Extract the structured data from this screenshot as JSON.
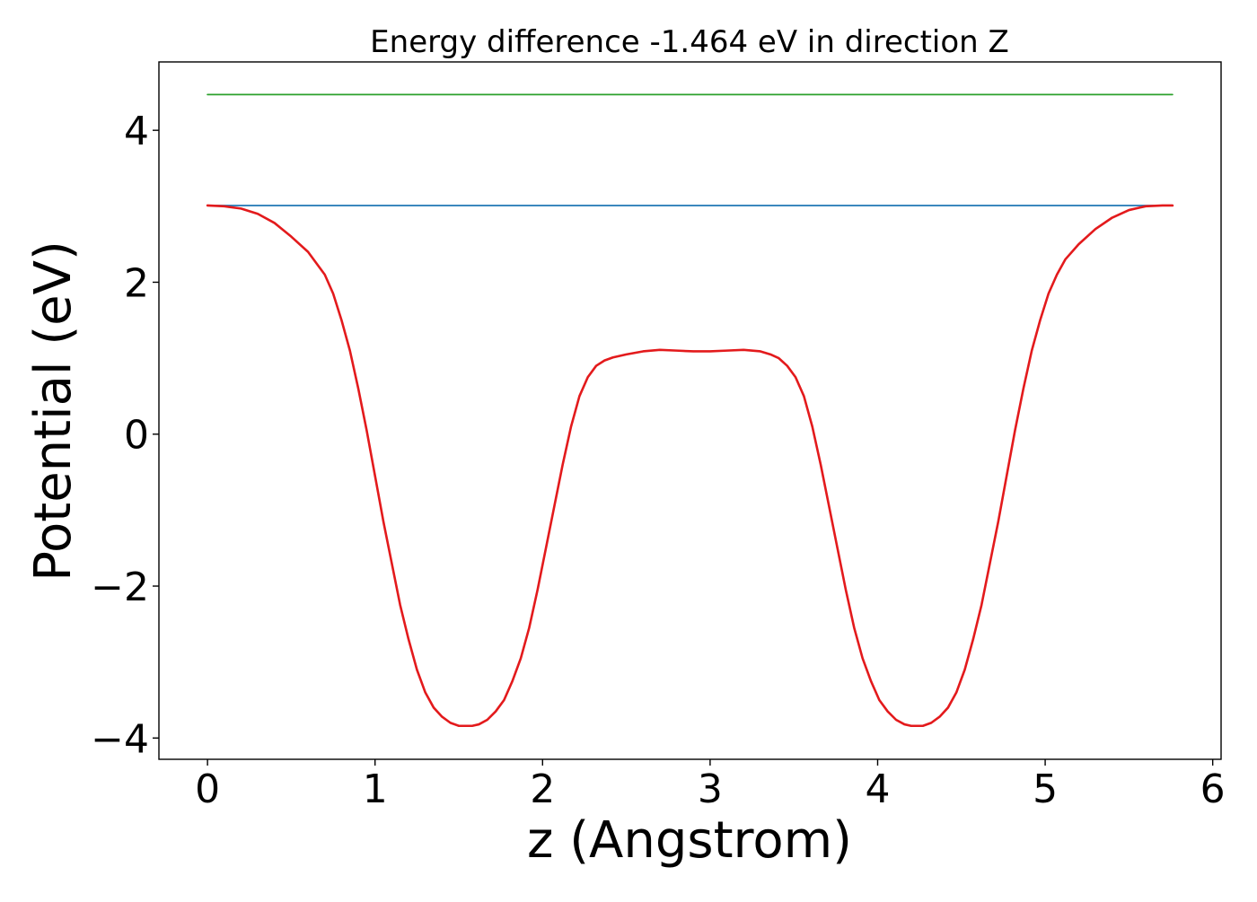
{
  "chart_data": {
    "type": "line",
    "title": "Energy difference -1.464 eV in direction Z",
    "xlabel": "z (Angstrom)",
    "ylabel": "Potential (eV)",
    "xlim": [
      -0.29,
      6.05
    ],
    "ylim": [
      -4.28,
      4.9
    ],
    "x_ticks": [
      0,
      1,
      2,
      3,
      4,
      5,
      6
    ],
    "x_tick_labels": [
      "0",
      "1",
      "2",
      "3",
      "4",
      "5",
      "6"
    ],
    "y_ticks": [
      -4,
      -2,
      0,
      2,
      4
    ],
    "y_tick_labels": [
      "−4",
      "−2",
      "0",
      "2",
      "4"
    ],
    "grid": false,
    "legend": "none",
    "series": [
      {
        "color": "#2ca02c",
        "style": "horizontal",
        "x": [
          0.0,
          5.76
        ],
        "y": [
          4.47,
          4.47
        ]
      },
      {
        "color": "#1f77b4",
        "style": "horizontal",
        "x": [
          0.0,
          5.76
        ],
        "y": [
          3.01,
          3.01
        ]
      },
      {
        "color": "#e31a1c",
        "style": "curve",
        "x": [
          0.0,
          0.1,
          0.2,
          0.3,
          0.4,
          0.5,
          0.6,
          0.7,
          0.75,
          0.8,
          0.85,
          0.9,
          0.95,
          1.0,
          1.05,
          1.1,
          1.15,
          1.2,
          1.25,
          1.3,
          1.35,
          1.4,
          1.45,
          1.5,
          1.55,
          1.58,
          1.62,
          1.67,
          1.72,
          1.77,
          1.82,
          1.87,
          1.92,
          1.97,
          2.02,
          2.07,
          2.12,
          2.17,
          2.22,
          2.27,
          2.32,
          2.37,
          2.42,
          2.5,
          2.6,
          2.7,
          2.8,
          2.9,
          3.0,
          3.1,
          3.2,
          3.3,
          3.36,
          3.41,
          3.46,
          3.51,
          3.56,
          3.61,
          3.66,
          3.71,
          3.76,
          3.81,
          3.86,
          3.91,
          3.96,
          4.01,
          4.06,
          4.11,
          4.16,
          4.2,
          4.23,
          4.27,
          4.32,
          4.37,
          4.42,
          4.47,
          4.52,
          4.57,
          4.62,
          4.67,
          4.72,
          4.77,
          4.82,
          4.87,
          4.92,
          4.97,
          5.02,
          5.07,
          5.12,
          5.2,
          5.3,
          5.4,
          5.5,
          5.6,
          5.7,
          5.76
        ],
        "y": [
          3.01,
          3.0,
          2.97,
          2.9,
          2.78,
          2.6,
          2.4,
          2.1,
          1.85,
          1.5,
          1.1,
          0.6,
          0.05,
          -0.55,
          -1.15,
          -1.7,
          -2.25,
          -2.7,
          -3.1,
          -3.4,
          -3.6,
          -3.72,
          -3.8,
          -3.84,
          -3.84,
          -3.84,
          -3.82,
          -3.76,
          -3.65,
          -3.5,
          -3.25,
          -2.95,
          -2.55,
          -2.05,
          -1.5,
          -0.95,
          -0.4,
          0.1,
          0.5,
          0.75,
          0.9,
          0.97,
          1.01,
          1.05,
          1.09,
          1.11,
          1.1,
          1.09,
          1.09,
          1.1,
          1.11,
          1.09,
          1.05,
          1.0,
          0.9,
          0.75,
          0.5,
          0.1,
          -0.4,
          -0.95,
          -1.5,
          -2.05,
          -2.55,
          -2.95,
          -3.25,
          -3.5,
          -3.65,
          -3.76,
          -3.82,
          -3.84,
          -3.84,
          -3.84,
          -3.8,
          -3.72,
          -3.6,
          -3.4,
          -3.1,
          -2.7,
          -2.25,
          -1.7,
          -1.15,
          -0.55,
          0.05,
          0.6,
          1.1,
          1.5,
          1.85,
          2.1,
          2.3,
          2.5,
          2.7,
          2.85,
          2.95,
          3.0,
          3.01,
          3.01
        ]
      }
    ]
  }
}
